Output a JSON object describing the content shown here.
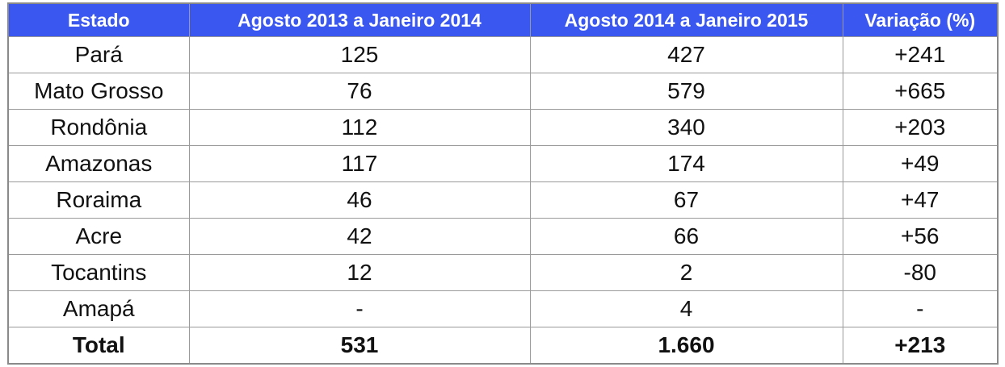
{
  "table": {
    "headers": [
      "Estado",
      "Agosto 2013 a Janeiro 2014",
      "Agosto 2014 a Janeiro 2015",
      "Variação (%)"
    ],
    "rows": [
      [
        "Pará",
        "125",
        "427",
        "+241"
      ],
      [
        "Mato Grosso",
        "76",
        "579",
        "+665"
      ],
      [
        "Rondônia",
        "112",
        "340",
        "+203"
      ],
      [
        "Amazonas",
        "117",
        "174",
        "+49"
      ],
      [
        "Roraima",
        "46",
        "67",
        "+47"
      ],
      [
        "Acre",
        "42",
        "66",
        "+56"
      ],
      [
        "Tocantins",
        "12",
        "2",
        "-80"
      ],
      [
        "Amapá",
        "-",
        "4",
        "-"
      ]
    ],
    "total": [
      "Total",
      "531",
      "1.660",
      "+213"
    ]
  },
  "colors": {
    "header_background": "#3a57f0",
    "header_text": "#ffffff",
    "border": "#9a9a9a"
  }
}
